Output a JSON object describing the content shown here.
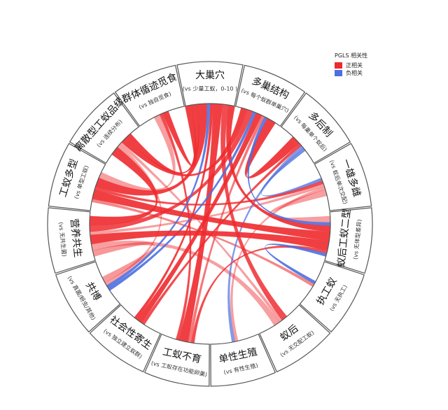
{
  "legend": {
    "title": "PGLS 相关性",
    "positive": "正相关",
    "negative": "负相关",
    "positive_color": "#ee2a2e",
    "negative_color": "#4c6fe0"
  },
  "segments": [
    {
      "title": "大巢穴",
      "subtitle": "(vs 少量工蚁，0-10 )"
    },
    {
      "title": "多巢结构",
      "subtitle": "(vs 每个蚁群单巢穴)"
    },
    {
      "title": "多后制",
      "subtitle": "(vs 每巢单个蚁后)"
    },
    {
      "title": "一雄多雌",
      "subtitle": "(vs 蚁后单次交配)"
    },
    {
      "title": "蚁后工蚁二型",
      "subtitle": "(vs 无体型差异)"
    },
    {
      "title": "执工蚁",
      "subtitle": "(vs 无执工)"
    },
    {
      "title": "蚁后",
      "subtitle": "(vs 无交配工蚁)"
    },
    {
      "title": "单性生殖",
      "subtitle": "(vs 有性生殖)"
    },
    {
      "title": "工蚁不育",
      "subtitle": "(vs 工蚁存在功能卵巢)"
    },
    {
      "title": "社会性寄生",
      "subtitle": "(vs 独立建立蚁群)"
    },
    {
      "title": "共博",
      "subtitle": "(vs 真菌/蚜虫/其他)"
    },
    {
      "title": "营养共生",
      "subtitle": "(vs 无共生菌)"
    },
    {
      "title": "工蚁多型",
      "subtitle": "(vs 单型工蚁)"
    },
    {
      "title": "离散型工蚁品级",
      "subtitle": "(vs 连续分布)"
    },
    {
      "title": "群体循迹觅食",
      "subtitle": "(vs 独自觅食)"
    }
  ],
  "links": [
    {
      "source": 0,
      "target": 8,
      "weight": 3,
      "sign": "positive",
      "strength": 1.0
    },
    {
      "source": 0,
      "target": 6,
      "weight": 2,
      "sign": "positive",
      "strength": 0.9
    },
    {
      "source": 0,
      "target": 12,
      "weight": 3,
      "sign": "positive",
      "strength": 1.0
    },
    {
      "source": 0,
      "target": 13,
      "weight": 2,
      "sign": "positive",
      "strength": 1.0
    },
    {
      "source": 0,
      "target": 9,
      "weight": 1,
      "sign": "positive",
      "strength": 1.0
    },
    {
      "source": 0,
      "target": 14,
      "weight": 2,
      "sign": "positive",
      "strength": 1.0
    },
    {
      "source": 0,
      "target": 4,
      "weight": 2,
      "sign": "positive",
      "strength": 1.0
    },
    {
      "source": 0,
      "target": 10,
      "weight": 1,
      "sign": "negative",
      "strength": 1.0
    },
    {
      "source": 1,
      "target": 2,
      "weight": 3,
      "sign": "positive",
      "strength": 1.0
    },
    {
      "source": 1,
      "target": 9,
      "weight": 2,
      "sign": "positive",
      "strength": 1.0
    },
    {
      "source": 1,
      "target": 13,
      "weight": 2,
      "sign": "positive",
      "strength": 1.0
    },
    {
      "source": 1,
      "target": 11,
      "weight": 2,
      "sign": "positive",
      "strength": 0.9
    },
    {
      "source": 1,
      "target": 8,
      "weight": 1,
      "sign": "positive",
      "strength": 0.6
    },
    {
      "source": 1,
      "target": 10,
      "weight": 1,
      "sign": "negative",
      "strength": 1.0
    },
    {
      "source": 1,
      "target": 4,
      "weight": 1,
      "sign": "negative",
      "strength": 1.0
    },
    {
      "source": 2,
      "target": 9,
      "weight": 1,
      "sign": "positive",
      "strength": 0.9
    },
    {
      "source": 2,
      "target": 3,
      "weight": 1,
      "sign": "negative",
      "strength": 0.8
    },
    {
      "source": 2,
      "target": 7,
      "weight": 1,
      "sign": "negative",
      "strength": 0.7
    },
    {
      "source": 3,
      "target": 4,
      "weight": 2,
      "sign": "positive",
      "strength": 0.3
    },
    {
      "source": 3,
      "target": 12,
      "weight": 1,
      "sign": "positive",
      "strength": 0.9
    },
    {
      "source": 3,
      "target": 11,
      "weight": 1,
      "sign": "positive",
      "strength": 0.3
    },
    {
      "source": 4,
      "target": 12,
      "weight": 3,
      "sign": "positive",
      "strength": 1.0
    },
    {
      "source": 4,
      "target": 11,
      "weight": 3,
      "sign": "positive",
      "strength": 1.0
    },
    {
      "source": 4,
      "target": 5,
      "weight": 1,
      "sign": "negative",
      "strength": 1.0
    },
    {
      "source": 4,
      "target": 8,
      "weight": 1,
      "sign": "positive",
      "strength": 0.9
    },
    {
      "source": 5,
      "target": 12,
      "weight": 1,
      "sign": "positive",
      "strength": 0.5
    },
    {
      "source": 6,
      "target": 11,
      "weight": 2,
      "sign": "positive",
      "strength": 0.3
    },
    {
      "source": 6,
      "target": 13,
      "weight": 1,
      "sign": "positive",
      "strength": 0.3
    },
    {
      "source": 7,
      "target": 3,
      "weight": 1,
      "sign": "positive",
      "strength": 0.3
    },
    {
      "source": 10,
      "target": 11,
      "weight": 2,
      "sign": "positive",
      "strength": 0.35
    },
    {
      "source": 10,
      "target": 13,
      "weight": 1,
      "sign": "positive",
      "strength": 0.3
    },
    {
      "source": 12,
      "target": 14,
      "weight": 2,
      "sign": "positive",
      "strength": 0.3
    },
    {
      "source": 13,
      "target": 11,
      "weight": 3,
      "sign": "positive",
      "strength": 1.0
    },
    {
      "source": 14,
      "target": 8,
      "weight": 1,
      "sign": "positive",
      "strength": 0.9
    }
  ]
}
